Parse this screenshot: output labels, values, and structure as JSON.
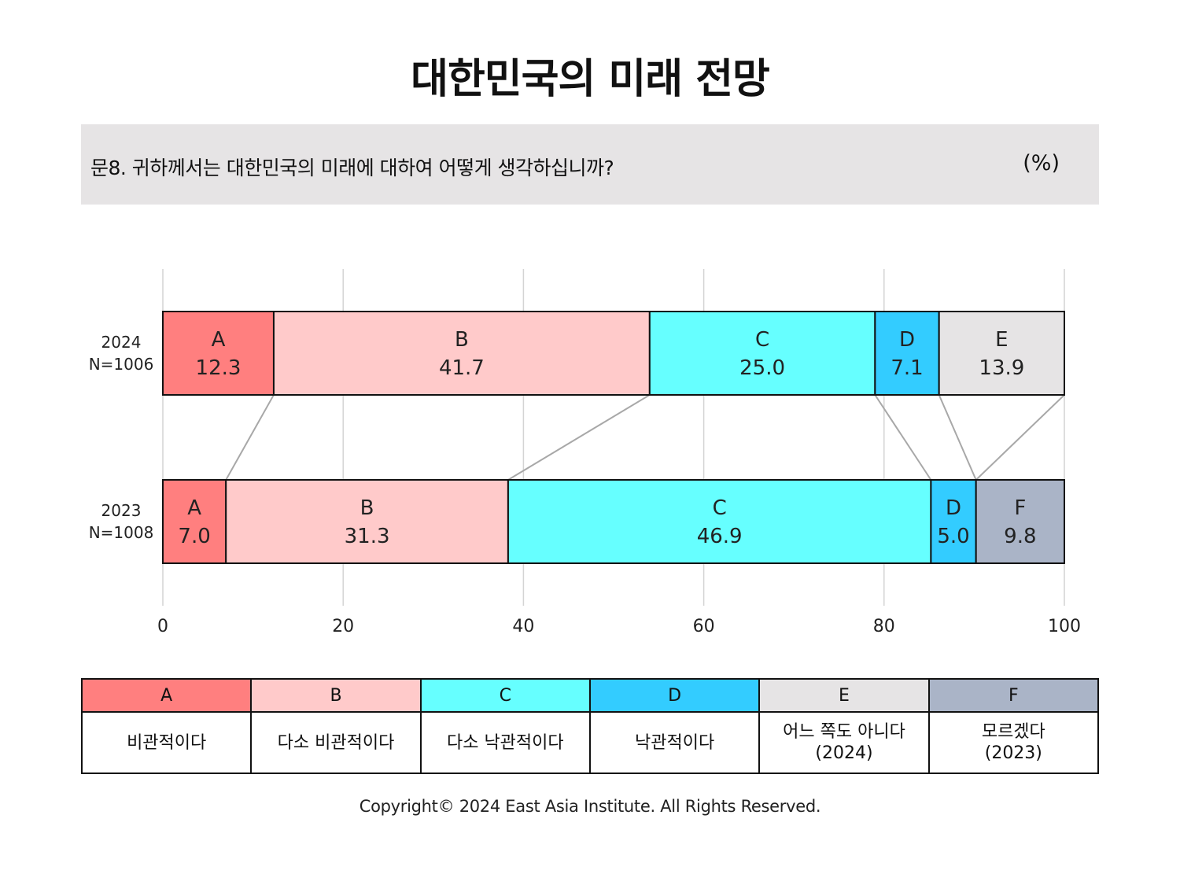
{
  "title": "대한민국의 미래 전망",
  "question": "문8. 귀하께서는 대한민국의 미래에 대하여 어떻게 생각하십니까?",
  "unit": "(%)",
  "copyright": "Copyright© 2024 East Asia Institute. All Rights Reserved.",
  "colors": {
    "A": "#ff7f7f",
    "B": "#ffcaca",
    "C": "#66ffff",
    "D": "#33ccff",
    "E": "#e6e4e5",
    "F": "#aab4c7"
  },
  "chart_data": {
    "type": "bar",
    "orientation": "horizontal",
    "stacked": true,
    "xlim": [
      0,
      100
    ],
    "xticks": [
      0,
      20,
      40,
      60,
      80,
      100
    ],
    "grid": true,
    "rows": [
      {
        "label_line1": "2024",
        "label_line2": "N=1006",
        "segments": [
          {
            "key": "A",
            "value": 12.3
          },
          {
            "key": "B",
            "value": 41.7
          },
          {
            "key": "C",
            "value": 25.0
          },
          {
            "key": "D",
            "value": 7.1
          },
          {
            "key": "E",
            "value": 13.9
          }
        ]
      },
      {
        "label_line1": "2023",
        "label_line2": "N=1008",
        "segments": [
          {
            "key": "A",
            "value": 7.0
          },
          {
            "key": "B",
            "value": 31.3
          },
          {
            "key": "C",
            "value": 46.9
          },
          {
            "key": "D",
            "value": 5.0
          },
          {
            "key": "F",
            "value": 9.8
          }
        ]
      }
    ]
  },
  "legend": [
    {
      "key": "A",
      "label_line1": "비관적이다",
      "label_line2": ""
    },
    {
      "key": "B",
      "label_line1": "다소 비관적이다",
      "label_line2": ""
    },
    {
      "key": "C",
      "label_line1": "다소 낙관적이다",
      "label_line2": ""
    },
    {
      "key": "D",
      "label_line1": "낙관적이다",
      "label_line2": ""
    },
    {
      "key": "E",
      "label_line1": "어느 쪽도 아니다",
      "label_line2": "(2024)"
    },
    {
      "key": "F",
      "label_line1": "모르겠다",
      "label_line2": "(2023)"
    }
  ]
}
